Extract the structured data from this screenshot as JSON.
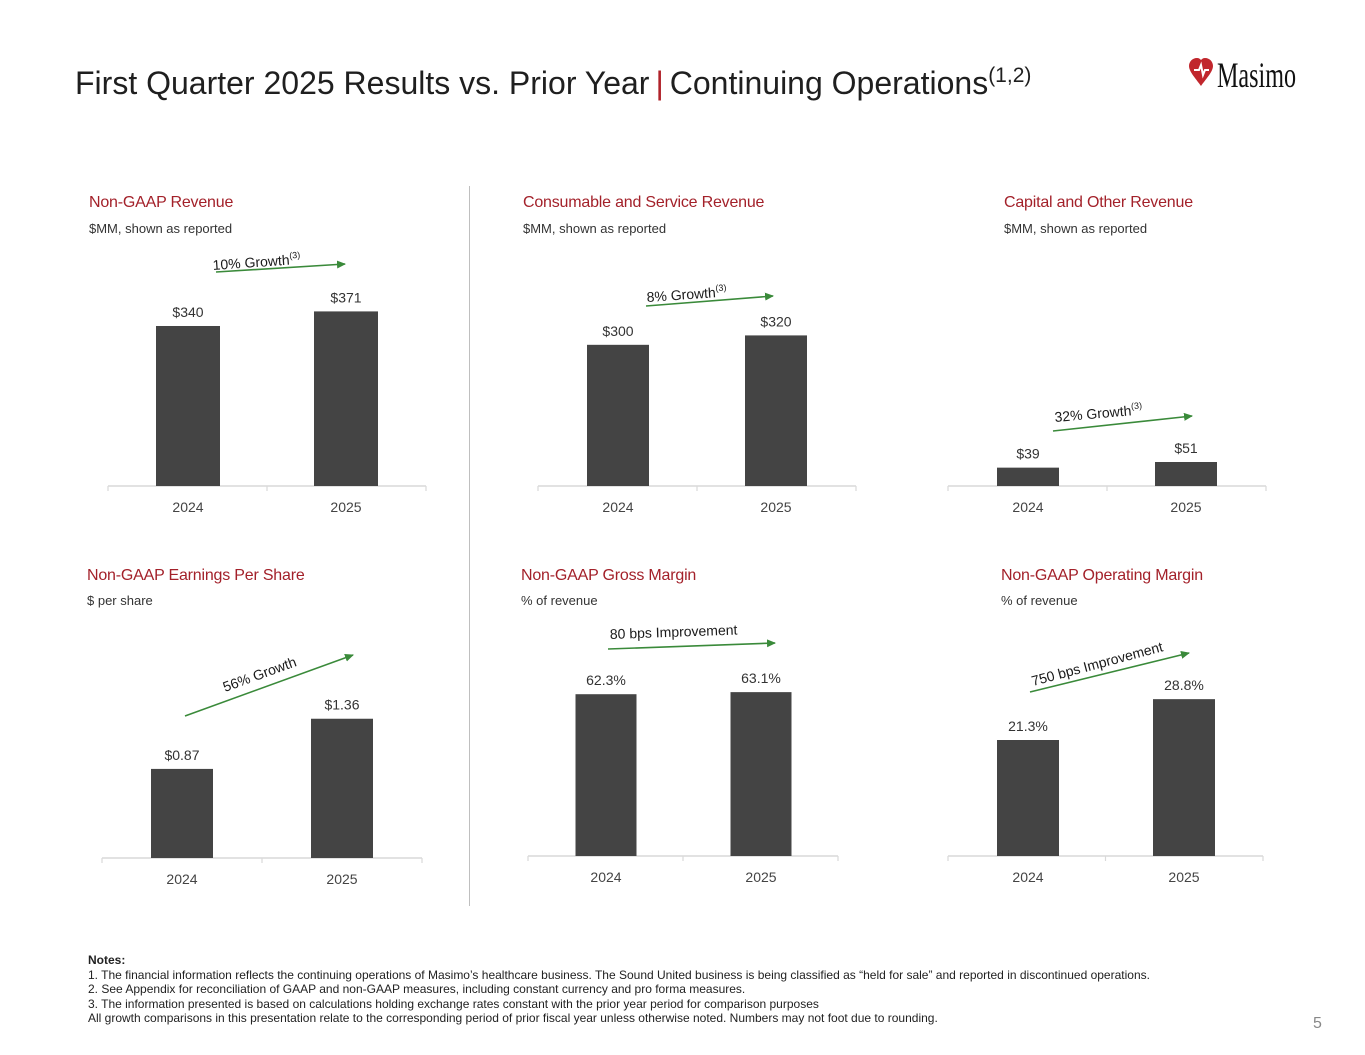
{
  "title": {
    "main": "First Quarter 2025 Results vs. Prior Year",
    "separator": "|",
    "section": "Continuing Operations",
    "sup": "(1,2)"
  },
  "logo": {
    "name": "Masimo logo"
  },
  "colors": {
    "accent": "#a3212a",
    "bar": "#444444",
    "arrow": "#3a8a3a",
    "axis": "#d9d9d9"
  },
  "panels": [
    {
      "title": "Non-GAAP Revenue",
      "subtitle": "$MM, shown as reported",
      "growth": "10% Growth",
      "growth_sup": "(3)"
    },
    {
      "title": "Consumable and Service Revenue",
      "subtitle": "$MM, shown as reported",
      "growth": "8% Growth",
      "growth_sup": "(3)"
    },
    {
      "title": "Capital and Other Revenue",
      "subtitle": "$MM, shown as reported",
      "growth": "32% Growth",
      "growth_sup": "(3)"
    },
    {
      "title": "Non-GAAP Earnings Per Share",
      "subtitle": "$ per share",
      "growth": "56% Growth",
      "growth_sup": ""
    },
    {
      "title": "Non-GAAP Gross Margin",
      "subtitle": "% of revenue",
      "growth": "80 bps Improvement",
      "growth_sup": ""
    },
    {
      "title": "Non-GAAP Operating Margin",
      "subtitle": "% of revenue",
      "growth": "750 bps Improvement",
      "growth_sup": ""
    }
  ],
  "chart_data": [
    {
      "type": "bar",
      "title": "Non-GAAP Revenue",
      "categories": [
        "2024",
        "2025"
      ],
      "values": [
        340,
        371
      ],
      "labels": [
        "$340",
        "$371"
      ],
      "ylim": [
        0,
        400
      ]
    },
    {
      "type": "bar",
      "title": "Consumable and Service Revenue",
      "categories": [
        "2024",
        "2025"
      ],
      "values": [
        300,
        320
      ],
      "labels": [
        "$300",
        "$320"
      ],
      "ylim": [
        0,
        400
      ]
    },
    {
      "type": "bar",
      "title": "Capital and Other Revenue",
      "categories": [
        "2024",
        "2025"
      ],
      "values": [
        39,
        51
      ],
      "labels": [
        "$39",
        "$51"
      ],
      "ylim": [
        0,
        400
      ]
    },
    {
      "type": "bar",
      "title": "Non-GAAP Earnings Per Share",
      "categories": [
        "2024",
        "2025"
      ],
      "values": [
        0.87,
        1.36
      ],
      "labels": [
        "$0.87",
        "$1.36"
      ],
      "ylim": [
        0,
        1.8
      ]
    },
    {
      "type": "bar",
      "title": "Non-GAAP Gross Margin",
      "categories": [
        "2024",
        "2025"
      ],
      "values": [
        62.3,
        63.1
      ],
      "labels": [
        "62.3%",
        "63.1%"
      ],
      "ylim": [
        0,
        80
      ]
    },
    {
      "type": "bar",
      "title": "Non-GAAP Operating Margin",
      "categories": [
        "2024",
        "2025"
      ],
      "values": [
        21.3,
        28.8
      ],
      "labels": [
        "21.3%",
        "28.8%"
      ],
      "ylim": [
        0,
        38
      ]
    }
  ],
  "notes": {
    "heading": "Notes:",
    "lines": [
      "1. The financial information reflects the continuing operations of Masimo’s healthcare business.  The Sound United business is being classified as “held for sale” and reported in discontinued operations.",
      "2. See Appendix for reconciliation of GAAP and non-GAAP measures, including constant currency and pro forma measures.",
      "3. The information presented is based on calculations holding exchange rates constant with the prior year period for comparison purposes",
      "All growth comparisons in this presentation relate to the corresponding period of prior fiscal year unless otherwise noted.  Numbers may not foot due to rounding."
    ]
  },
  "page_number": "5"
}
